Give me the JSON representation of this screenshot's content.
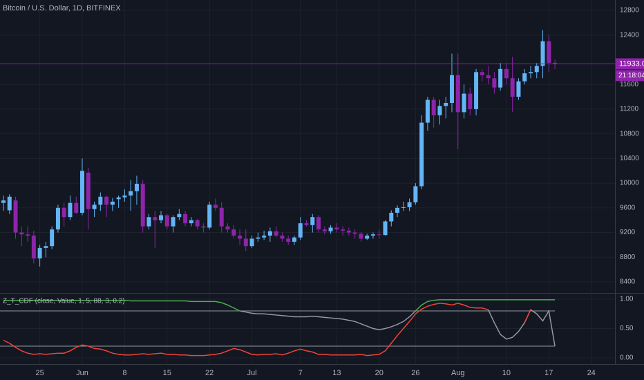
{
  "chart_data": [
    {
      "type": "candlestick",
      "title": "Bitcoin / U.S. Dollar, 1D, BITFINEX",
      "categories": [
        null,
        null,
        null,
        null,
        null,
        null,
        "25",
        null,
        null,
        null,
        null,
        null,
        null,
        "Jun",
        null,
        null,
        null,
        null,
        null,
        null,
        "8",
        null,
        null,
        null,
        null,
        null,
        null,
        "15",
        null,
        null,
        null,
        null,
        null,
        null,
        "22",
        null,
        null,
        null,
        null,
        null,
        null,
        "Jul",
        null,
        null,
        null,
        null,
        null,
        null,
        null,
        "7",
        null,
        null,
        null,
        null,
        null,
        "13",
        null,
        null,
        null,
        null,
        null,
        null,
        "20",
        null,
        null,
        null,
        null,
        null,
        "26",
        null,
        null,
        null,
        null,
        null,
        null,
        "Aug",
        null,
        null,
        null,
        null,
        null,
        null,
        null,
        "10",
        null,
        null,
        null,
        null,
        null,
        null,
        "17",
        null,
        null,
        null,
        null,
        null,
        null,
        "24"
      ],
      "open": [
        9680,
        9560,
        9720,
        9200,
        9170,
        9150,
        8780,
        8950,
        8980,
        9250,
        9600,
        9450,
        9680,
        9520,
        10170,
        9580,
        9650,
        9780,
        9650,
        9740,
        9770,
        9800,
        9870,
        9990,
        9300,
        9450,
        9400,
        9480,
        9300,
        9450,
        9500,
        9350,
        9400,
        9300,
        9280,
        9650,
        9600,
        9300,
        9250,
        9150,
        9100,
        8980,
        9100,
        9120,
        9150,
        9220,
        9150,
        9100,
        9050,
        9120,
        9350,
        9320,
        9450,
        9250,
        9220,
        9280,
        9250,
        9230,
        9200,
        9180,
        9100,
        9150,
        9170,
        9160,
        9380,
        9520,
        9600,
        9610,
        9690,
        9950,
        10980,
        11350,
        11100,
        11250,
        11300,
        11750,
        11150,
        11450,
        11200,
        11800,
        11750,
        11700,
        11550,
        11850,
        11700,
        11400,
        11650,
        11780,
        11800,
        11900,
        12300,
        11950,
        null,
        null,
        null,
        null,
        null,
        null
      ],
      "high": [
        9800,
        9820,
        9780,
        9300,
        9300,
        9230,
        9000,
        9050,
        9300,
        9650,
        9680,
        9800,
        9780,
        10400,
        10250,
        9700,
        9850,
        9800,
        9760,
        9800,
        9900,
        10050,
        10120,
        10050,
        9500,
        9550,
        9550,
        9500,
        9480,
        9580,
        9550,
        9450,
        9420,
        9350,
        9700,
        9750,
        9690,
        9350,
        9320,
        9250,
        9250,
        9150,
        9200,
        9230,
        9280,
        9300,
        9200,
        9150,
        9150,
        9450,
        9400,
        9500,
        9480,
        9300,
        9320,
        9350,
        9300,
        9280,
        9250,
        9210,
        9180,
        9200,
        9250,
        9400,
        9560,
        9640,
        9700,
        9750,
        10000,
        11100,
        11400,
        11400,
        11350,
        11400,
        12100,
        12100,
        11600,
        11550,
        11850,
        11850,
        11900,
        11800,
        11950,
        11950,
        12050,
        11700,
        11850,
        11900,
        11950,
        12480,
        12400,
        12000,
        null,
        null,
        null,
        null,
        null,
        null
      ],
      "low": [
        9550,
        9500,
        9100,
        8980,
        9050,
        8700,
        8650,
        8800,
        8930,
        9200,
        9300,
        9400,
        9500,
        9480,
        9250,
        9450,
        9550,
        9450,
        9550,
        9600,
        9700,
        9550,
        9650,
        9200,
        9250,
        8950,
        9350,
        9250,
        9200,
        9400,
        9300,
        9300,
        9250,
        9200,
        9250,
        9550,
        9200,
        9200,
        9100,
        9000,
        8900,
        8950,
        9050,
        9080,
        9050,
        9120,
        9050,
        9000,
        9000,
        9080,
        9300,
        9200,
        9200,
        9170,
        9180,
        9200,
        9150,
        9150,
        9100,
        9050,
        9080,
        9100,
        9100,
        9150,
        9300,
        9450,
        9550,
        9550,
        9650,
        9900,
        10850,
        10900,
        10950,
        11050,
        11150,
        10550,
        11050,
        11100,
        11100,
        11650,
        11600,
        11450,
        11500,
        11600,
        11150,
        11350,
        11600,
        11700,
        11700,
        11700,
        11800,
        11850,
        null,
        null,
        null,
        null,
        null,
        null
      ],
      "close": [
        9720,
        9780,
        9200,
        9170,
        9150,
        8780,
        8950,
        8980,
        9250,
        9600,
        9450,
        9680,
        9520,
        10200,
        9580,
        9650,
        9780,
        9650,
        9700,
        9770,
        9800,
        9870,
        9990,
        9300,
        9450,
        9400,
        9480,
        9300,
        9450,
        9500,
        9350,
        9400,
        9300,
        9280,
        9650,
        9600,
        9300,
        9250,
        9150,
        9100,
        8980,
        9100,
        9120,
        9150,
        9220,
        9150,
        9100,
        9050,
        9120,
        9350,
        9320,
        9450,
        9250,
        9220,
        9280,
        9250,
        9230,
        9200,
        9180,
        9100,
        9150,
        9170,
        9160,
        9380,
        9520,
        9600,
        9610,
        9690,
        9950,
        10980,
        11350,
        11100,
        11250,
        11300,
        11750,
        11150,
        11450,
        11200,
        11800,
        11750,
        11700,
        11550,
        11850,
        11700,
        11400,
        11650,
        11780,
        11800,
        11900,
        12300,
        11950,
        11933,
        null,
        null,
        null,
        null,
        null,
        null
      ],
      "up_color": "#64b5f6",
      "down_color": "#8e24aa",
      "last_price": {
        "value": 11933,
        "label": "11933.0"
      },
      "countdown": "21:18:04",
      "ylim": [
        8232,
        12968
      ],
      "yticks": [
        8400,
        8800,
        9200,
        9600,
        10000,
        10400,
        10800,
        11200,
        11600,
        12400,
        12800
      ],
      "grid": true
    },
    {
      "type": "line",
      "title": "Z_T_CDF (close, Value, 1, 5, 88, 3, 0.2)",
      "series": [
        {
          "color": "#4caf50",
          "values": [
            0.98,
            0.98,
            0.98,
            0.98,
            0.98,
            0.98,
            0.98,
            0.98,
            0.98,
            0.98,
            0.98,
            0.98,
            0.98,
            0.98,
            0.98,
            0.98,
            0.98,
            0.98,
            0.98,
            0.98,
            0.98,
            0.97,
            0.97,
            0.97,
            0.97,
            0.97,
            0.97,
            0.97,
            0.97,
            0.97,
            0.97,
            0.96,
            0.96,
            0.96,
            0.96,
            0.96,
            0.94,
            0.9,
            0.85,
            0.8,
            null,
            null,
            null,
            null,
            null,
            null,
            null,
            null,
            null,
            null,
            null,
            null,
            null,
            null,
            null,
            null,
            null,
            null,
            null,
            null,
            null,
            null,
            null,
            null,
            null,
            null,
            null,
            null,
            0.8,
            0.9,
            0.96,
            0.98,
            0.99,
            0.99,
            0.99,
            0.99,
            0.99,
            0.99,
            0.99,
            0.99,
            0.99,
            0.99,
            0.99,
            0.99,
            0.99,
            0.99,
            0.99,
            0.99,
            0.99,
            0.99,
            0.99,
            0.99,
            null,
            null,
            null,
            null,
            null,
            null
          ]
        },
        {
          "color": "#9598a1",
          "values": [
            null,
            null,
            null,
            null,
            null,
            null,
            null,
            null,
            null,
            null,
            null,
            null,
            null,
            null,
            null,
            null,
            null,
            null,
            null,
            null,
            null,
            null,
            null,
            null,
            null,
            null,
            null,
            null,
            null,
            null,
            null,
            null,
            null,
            null,
            null,
            null,
            null,
            null,
            null,
            0.8,
            0.78,
            0.76,
            0.75,
            0.75,
            0.74,
            0.73,
            0.72,
            0.71,
            0.7,
            0.7,
            0.7,
            0.71,
            0.7,
            0.69,
            0.68,
            0.67,
            0.66,
            0.64,
            0.62,
            0.58,
            0.54,
            0.5,
            0.48,
            0.5,
            0.53,
            0.57,
            0.62,
            0.7,
            0.8,
            null,
            null,
            null,
            null,
            null,
            null,
            null,
            null,
            null,
            null,
            null,
            0.82,
            0.6,
            0.4,
            0.32,
            0.35,
            0.45,
            0.6,
            0.82,
            0.75,
            0.63,
            0.8,
            0.2,
            null,
            null,
            null,
            null,
            null,
            null
          ]
        },
        {
          "color": "#f44336",
          "values": [
            0.3,
            0.25,
            0.18,
            0.12,
            0.08,
            0.06,
            0.07,
            0.06,
            0.07,
            0.08,
            0.08,
            0.12,
            0.18,
            0.22,
            0.2,
            0.16,
            0.15,
            0.12,
            0.08,
            0.06,
            0.05,
            0.05,
            0.06,
            0.07,
            0.06,
            0.07,
            0.08,
            0.06,
            0.06,
            0.05,
            0.05,
            0.04,
            0.04,
            0.04,
            0.05,
            0.06,
            0.08,
            0.12,
            0.16,
            0.14,
            0.1,
            0.06,
            0.05,
            0.06,
            0.06,
            0.07,
            0.05,
            0.08,
            0.12,
            0.15,
            0.12,
            0.1,
            0.06,
            0.06,
            0.05,
            0.05,
            0.05,
            0.05,
            0.05,
            0.06,
            0.04,
            0.05,
            0.06,
            0.12,
            0.25,
            0.38,
            0.5,
            0.62,
            0.75,
            0.83,
            0.88,
            0.91,
            0.93,
            0.92,
            0.9,
            0.93,
            0.9,
            0.86,
            0.85,
            0.85,
            0.82,
            null,
            null,
            null,
            null,
            null,
            0.6,
            0.82,
            null,
            null,
            null,
            null,
            null,
            null,
            null,
            null,
            null,
            null
          ]
        }
      ],
      "levels": [
        0.8,
        0.2
      ],
      "ylim": [
        -0.106,
        1.094
      ],
      "yticks": [
        {
          "value": 0,
          "label": "0.00"
        },
        {
          "value": 0.5,
          "label": "0.50"
        },
        {
          "value": 1,
          "label": "1.00"
        }
      ],
      "grid": true
    }
  ]
}
